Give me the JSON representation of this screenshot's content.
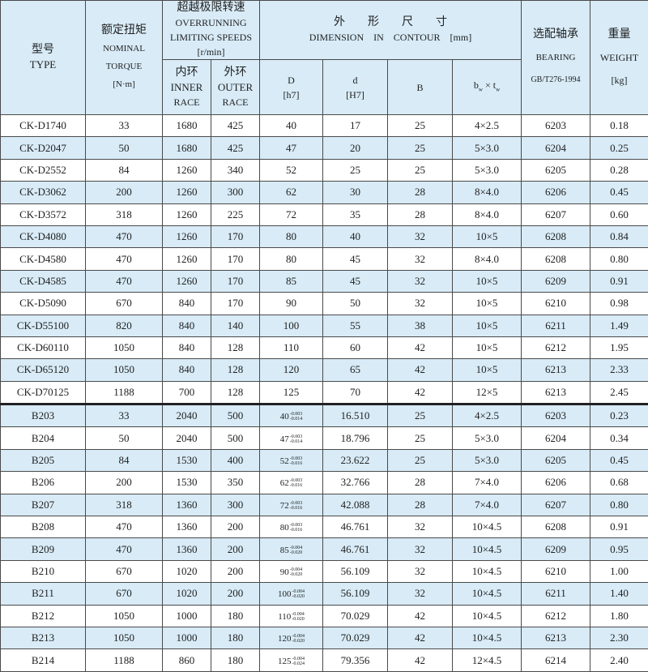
{
  "header": {
    "type_cn": "型号",
    "type_en": "TYPE",
    "torque_cn": "额定扭矩",
    "torque_en1": "NOMINAL",
    "torque_en2": "TORQUE",
    "torque_unit": "[N·m]",
    "speed_cn": "超越极限转速",
    "speed_en1": "OVERRUNNING",
    "speed_en2": "LIMITING SPEEDS",
    "speed_unit": "[r/min]",
    "inner_cn": "内环",
    "inner_en1": "INNER",
    "inner_en2": "RACE",
    "outer_cn": "外环",
    "outer_en1": "OUTER",
    "outer_en2": "RACE",
    "dim_cn": "外　　形　　尺　　寸",
    "dim_en": "DIMENSION　IN　CONTOUR　[mm]",
    "D": "D",
    "D_tol": "[h7]",
    "d": "d",
    "d_tol": "[H7]",
    "B": "B",
    "bt": "b",
    "bt_w": "w",
    "bt_x": " × t",
    "bt_w2": "w",
    "bearing_cn": "选配轴承",
    "bearing_en": "BEARING",
    "bearing_std": "GB/T276-1994",
    "weight_cn": "重量",
    "weight_en": "WEIGHT",
    "weight_unit": "[kg]"
  },
  "colors": {
    "row_alt": "#d8ebf7",
    "border": "#4a4a4a"
  },
  "ck_rows": [
    [
      "CK-D1740",
      "33",
      "1680",
      "425",
      "40",
      "17",
      "25",
      "4×2.5",
      "6203",
      "0.18"
    ],
    [
      "CK-D2047",
      "50",
      "1680",
      "425",
      "47",
      "20",
      "25",
      "5×3.0",
      "6204",
      "0.25"
    ],
    [
      "CK-D2552",
      "84",
      "1260",
      "340",
      "52",
      "25",
      "25",
      "5×3.0",
      "6205",
      "0.28"
    ],
    [
      "CK-D3062",
      "200",
      "1260",
      "300",
      "62",
      "30",
      "28",
      "8×4.0",
      "6206",
      "0.45"
    ],
    [
      "CK-D3572",
      "318",
      "1260",
      "225",
      "72",
      "35",
      "28",
      "8×4.0",
      "6207",
      "0.60"
    ],
    [
      "CK-D4080",
      "470",
      "1260",
      "170",
      "80",
      "40",
      "32",
      "10×5",
      "6208",
      "0.84"
    ],
    [
      "CK-D4580",
      "470",
      "1260",
      "170",
      "80",
      "45",
      "32",
      "8×4.0",
      "6208",
      "0.80"
    ],
    [
      "CK-D4585",
      "470",
      "1260",
      "170",
      "85",
      "45",
      "32",
      "10×5",
      "6209",
      "0.91"
    ],
    [
      "CK-D5090",
      "670",
      "840",
      "170",
      "90",
      "50",
      "32",
      "10×5",
      "6210",
      "0.98"
    ],
    [
      "CK-D55100",
      "820",
      "840",
      "140",
      "100",
      "55",
      "38",
      "10×5",
      "6211",
      "1.49"
    ],
    [
      "CK-D60110",
      "1050",
      "840",
      "128",
      "110",
      "60",
      "42",
      "10×5",
      "6212",
      "1.95"
    ],
    [
      "CK-D65120",
      "1050",
      "840",
      "128",
      "120",
      "65",
      "42",
      "10×5",
      "6213",
      "2.33"
    ],
    [
      "CK-D70125",
      "1188",
      "700",
      "128",
      "125",
      "70",
      "42",
      "12×5",
      "6213",
      "2.45"
    ]
  ],
  "b_rows": [
    {
      "type": "B203",
      "torque": "33",
      "inner": "2040",
      "outer": "500",
      "D": "40",
      "D_up": "-0.003",
      "D_lo": "-0.014",
      "d": "16.510",
      "B": "25",
      "bt": "4×2.5",
      "bearing": "6203",
      "weight": "0.23"
    },
    {
      "type": "B204",
      "torque": "50",
      "inner": "2040",
      "outer": "500",
      "D": "47",
      "D_up": "-0.003",
      "D_lo": "-0.014",
      "d": "18.796",
      "B": "25",
      "bt": "5×3.0",
      "bearing": "6204",
      "weight": "0.34"
    },
    {
      "type": "B205",
      "torque": "84",
      "inner": "1530",
      "outer": "400",
      "D": "52",
      "D_up": "-0.003",
      "D_lo": "-0.016",
      "d": "23.622",
      "B": "25",
      "bt": "5×3.0",
      "bearing": "6205",
      "weight": "0.45"
    },
    {
      "type": "B206",
      "torque": "200",
      "inner": "1530",
      "outer": "350",
      "D": "62",
      "D_up": "-0.003",
      "D_lo": "-0.016",
      "d": "32.766",
      "B": "28",
      "bt": "7×4.0",
      "bearing": "6206",
      "weight": "0.68"
    },
    {
      "type": "B207",
      "torque": "318",
      "inner": "1360",
      "outer": "300",
      "D": "72",
      "D_up": "-0.003",
      "D_lo": "-0.016",
      "d": "42.088",
      "B": "28",
      "bt": "7×4.0",
      "bearing": "6207",
      "weight": "0.80"
    },
    {
      "type": "B208",
      "torque": "470",
      "inner": "1360",
      "outer": "200",
      "D": "80",
      "D_up": "-0.003",
      "D_lo": "-0.016",
      "d": "46.761",
      "B": "32",
      "bt": "10×4.5",
      "bearing": "6208",
      "weight": "0.91"
    },
    {
      "type": "B209",
      "torque": "470",
      "inner": "1360",
      "outer": "200",
      "D": "85",
      "D_up": "-0.004",
      "D_lo": "-0.020",
      "d": "46.761",
      "B": "32",
      "bt": "10×4.5",
      "bearing": "6209",
      "weight": "0.95"
    },
    {
      "type": "B210",
      "torque": "670",
      "inner": "1020",
      "outer": "200",
      "D": "90",
      "D_up": "-0.004",
      "D_lo": "-0.020",
      "d": "56.109",
      "B": "32",
      "bt": "10×4.5",
      "bearing": "6210",
      "weight": "1.00"
    },
    {
      "type": "B211",
      "torque": "670",
      "inner": "1020",
      "outer": "200",
      "D": "100",
      "D_up": "-0.004",
      "D_lo": "-0.020",
      "d": "56.109",
      "B": "32",
      "bt": "10×4.5",
      "bearing": "6211",
      "weight": "1.40"
    },
    {
      "type": "B212",
      "torque": "1050",
      "inner": "1000",
      "outer": "180",
      "D": "110",
      "D_up": "-0.004",
      "D_lo": "-0.020",
      "d": "70.029",
      "B": "42",
      "bt": "10×4.5",
      "bearing": "6212",
      "weight": "1.80"
    },
    {
      "type": "B213",
      "torque": "1050",
      "inner": "1000",
      "outer": "180",
      "D": "120",
      "D_up": "-0.004",
      "D_lo": "-0.020",
      "d": "70.029",
      "B": "42",
      "bt": "10×4.5",
      "bearing": "6213",
      "weight": "2.30"
    },
    {
      "type": "B214",
      "torque": "1188",
      "inner": "860",
      "outer": "180",
      "D": "125",
      "D_up": "-0.004",
      "D_lo": "-0.024",
      "d": "79.356",
      "B": "42",
      "bt": "12×4.5",
      "bearing": "6214",
      "weight": "2.40"
    }
  ]
}
